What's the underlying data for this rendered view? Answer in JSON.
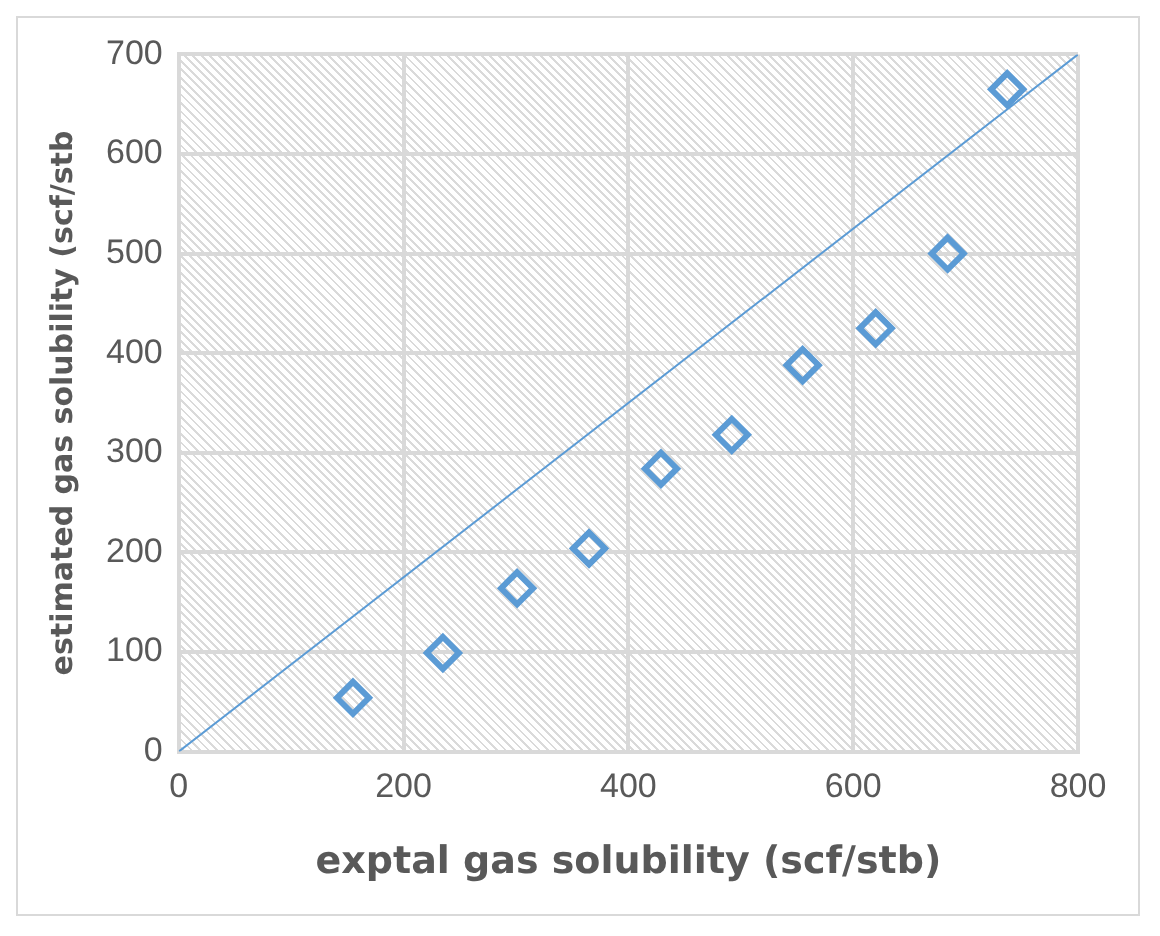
{
  "chart_data": {
    "type": "scatter",
    "xlabel": "exptal gas solubility (scf/stb)",
    "ylabel": "estimated gas solubility (scf/stb",
    "series": [
      {
        "color": "#5b9bd5",
        "marker": "diamond",
        "x": [
          155,
          235,
          301,
          365,
          429,
          492,
          555,
          620,
          684,
          737
        ],
        "values": [
          54,
          99,
          164,
          204,
          284,
          318,
          388,
          425,
          500,
          665
        ]
      },
      {
        "type": "line",
        "color": "#5b9bd5",
        "marker": "none",
        "x": [
          0,
          800
        ],
        "values": [
          0,
          700
        ]
      }
    ],
    "xlim": [
      0,
      800
    ],
    "xticks": [
      0,
      200,
      400,
      600,
      800
    ],
    "ylim": [
      0,
      700
    ],
    "yticks": [
      0,
      100,
      200,
      300,
      400,
      500,
      600,
      700
    ],
    "grid": true,
    "legend": false
  }
}
